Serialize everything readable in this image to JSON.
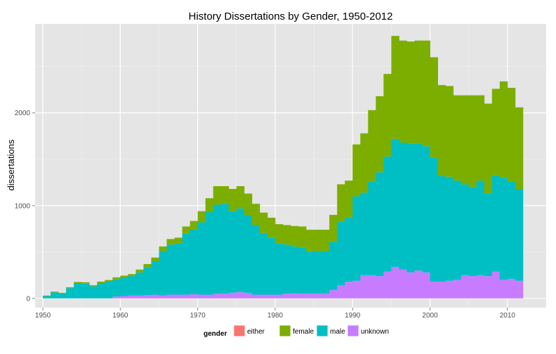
{
  "chart_data": {
    "type": "area",
    "stacked": true,
    "title": "History Dissertations by Gender, 1950-2012",
    "xlabel": "",
    "ylabel": "dissertations",
    "xlim": [
      1949,
      2015
    ],
    "ylim": [
      -100,
      2960
    ],
    "x_ticks": [
      1950,
      1960,
      1970,
      1980,
      1990,
      2000,
      2010
    ],
    "y_ticks": [
      0,
      1000,
      2000
    ],
    "grid": true,
    "legend": {
      "title": "gender",
      "position": "bottom"
    },
    "x": [
      1951,
      1952,
      1953,
      1954,
      1955,
      1956,
      1957,
      1958,
      1959,
      1960,
      1961,
      1962,
      1963,
      1964,
      1965,
      1966,
      1967,
      1968,
      1969,
      1970,
      1971,
      1972,
      1973,
      1974,
      1975,
      1976,
      1977,
      1978,
      1979,
      1980,
      1981,
      1982,
      1983,
      1984,
      1985,
      1986,
      1987,
      1988,
      1989,
      1990,
      1991,
      1992,
      1993,
      1994,
      1995,
      1996,
      1997,
      1998,
      1999,
      2000,
      2001,
      2002,
      2003,
      2004,
      2005,
      2006,
      2007,
      2008,
      2009,
      2010,
      2011,
      2012
    ],
    "series": [
      {
        "name": "either",
        "color": "#F8766D",
        "values": [
          0,
          0,
          0,
          0,
          0,
          0,
          0,
          0,
          0,
          0,
          0,
          0,
          0,
          0,
          0,
          0,
          0,
          0,
          0,
          0,
          0,
          0,
          0,
          0,
          0,
          0,
          0,
          0,
          0,
          0,
          0,
          0,
          0,
          0,
          0,
          0,
          0,
          0,
          0,
          0,
          0,
          0,
          0,
          0,
          0,
          0,
          0,
          0,
          0,
          0,
          0,
          0,
          0,
          0,
          0,
          0,
          0,
          0,
          0,
          0,
          0,
          0
        ]
      },
      {
        "name": "female",
        "color": "#7CAE00",
        "values": [
          5,
          8,
          8,
          10,
          12,
          14,
          12,
          16,
          18,
          22,
          20,
          22,
          30,
          35,
          40,
          50,
          60,
          65,
          75,
          90,
          120,
          150,
          200,
          190,
          240,
          240,
          230,
          230,
          220,
          215,
          210,
          210,
          220,
          230,
          235,
          230,
          230,
          290,
          400,
          400,
          560,
          640,
          770,
          820,
          890,
          1110,
          1100,
          1100,
          1110,
          1140,
          1080,
          980,
          980,
          920,
          960,
          990,
          920,
          970,
          930,
          1040,
          1010,
          880
        ]
      },
      {
        "name": "male",
        "color": "#00BFC4",
        "values": [
          25,
          65,
          52,
          110,
          165,
          160,
          130,
          165,
          180,
          185,
          200,
          210,
          250,
          300,
          360,
          480,
          540,
          550,
          660,
          700,
          780,
          890,
          960,
          970,
          880,
          900,
          840,
          750,
          665,
          615,
          550,
          530,
          505,
          495,
          455,
          460,
          460,
          520,
          690,
          690,
          910,
          890,
          1010,
          1120,
          1240,
          1380,
          1370,
          1390,
          1370,
          1360,
          1340,
          1140,
          1120,
          1070,
          980,
          960,
          1020,
          890,
          1040,
          1100,
          1050,
          990
        ]
      },
      {
        "name": "unknown",
        "color": "#C77CFF",
        "values": [
          0,
          0,
          0,
          0,
          0,
          0,
          0,
          0,
          0,
          20,
          25,
          30,
          30,
          35,
          40,
          30,
          40,
          40,
          40,
          45,
          40,
          40,
          50,
          50,
          60,
          70,
          60,
          40,
          40,
          40,
          40,
          50,
          55,
          50,
          50,
          50,
          50,
          90,
          140,
          180,
          190,
          250,
          250,
          240,
          290,
          340,
          310,
          280,
          300,
          280,
          180,
          180,
          190,
          200,
          250,
          240,
          250,
          240,
          290,
          200,
          210,
          190
        ]
      }
    ]
  }
}
